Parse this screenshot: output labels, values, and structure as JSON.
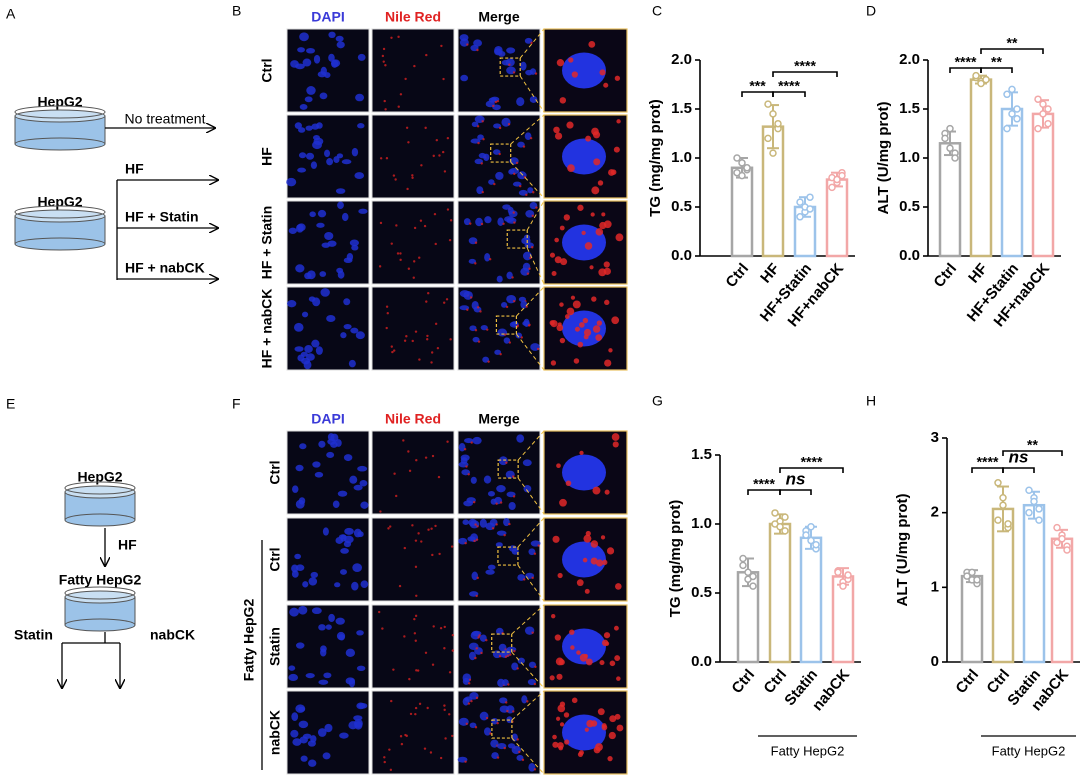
{
  "panel_labels": [
    "A",
    "B",
    "C",
    "D",
    "E",
    "F",
    "G",
    "H"
  ],
  "schematic_a": {
    "cell_1": "HepG2",
    "arrow_1": "No treatment",
    "cell_2": "HepG2",
    "branches": [
      "HF",
      "HF + Statin",
      "HF + nabCK"
    ]
  },
  "microscopy_b": {
    "columns": [
      "DAPI",
      "Nile Red",
      "Merge"
    ],
    "rows": [
      "Ctrl",
      "HF",
      "HF + Statin",
      "HF + nabCK"
    ]
  },
  "schematic_e": {
    "cell_1": "HepG2",
    "arrow": "HF",
    "cell_2": "Fatty HepG2",
    "branches": [
      "Statin",
      "nabCK"
    ]
  },
  "microscopy_f": {
    "columns": [
      "DAPI",
      "Nile Red",
      "Merge"
    ],
    "rows": [
      "Ctrl",
      "Ctrl",
      "Statin",
      "nabCK"
    ],
    "group": "Fatty HepG2"
  },
  "chart_data": [
    {
      "type": "bar",
      "ylabel": "TG (mg/mg prot)",
      "categories": [
        "Ctrl",
        "HF",
        "HF+Statin",
        "HF+nabCK"
      ],
      "colors": [
        "#a6a6a6",
        "#c9b77a",
        "#9cc3ea",
        "#f2a7a7"
      ],
      "values": [
        0.9,
        1.32,
        0.5,
        0.78
      ],
      "errors": [
        0.1,
        0.22,
        0.1,
        0.07
      ],
      "points": [
        [
          0.85,
          0.95,
          0.88,
          1.0,
          0.82,
          0.9
        ],
        [
          1.55,
          1.45,
          1.3,
          1.2,
          1.05,
          1.35
        ],
        [
          0.55,
          0.45,
          0.6,
          0.4,
          0.5,
          0.48
        ],
        [
          0.8,
          0.75,
          0.85,
          0.7,
          0.78,
          0.82
        ]
      ],
      "ylim": [
        0,
        2
      ],
      "yticks": [
        {
          "value": 0,
          "label": "0.0"
        },
        0.5,
        {
          "value": 1,
          "label": "1.0"
        },
        1.5,
        {
          "value": 2,
          "label": "2.0"
        }
      ],
      "significance": [
        {
          "pair": [
            0,
            1
          ],
          "label": "***"
        },
        {
          "pair": [
            1,
            2
          ],
          "label": "****"
        },
        {
          "pair": [
            1,
            3
          ],
          "label": "****"
        }
      ]
    },
    {
      "type": "bar",
      "ylabel": "ALT (U/mg prot)",
      "categories": [
        "Ctrl",
        "HF",
        "HF+Statin",
        "HF+nabCK"
      ],
      "colors": [
        "#a6a6a6",
        "#c9b77a",
        "#9cc3ea",
        "#f2a7a7"
      ],
      "values": [
        1.15,
        1.8,
        1.5,
        1.45
      ],
      "errors": [
        0.12,
        0.04,
        0.17,
        0.14
      ],
      "points": [
        [
          1.25,
          1.1,
          1.05,
          1.2,
          1.3,
          1.0
        ],
        [
          1.82,
          1.78,
          1.8,
          1.84,
          1.76,
          1.8
        ],
        [
          1.65,
          1.7,
          1.5,
          1.3,
          1.45,
          1.4
        ],
        [
          1.6,
          1.55,
          1.35,
          1.3,
          1.45,
          1.5
        ]
      ],
      "ylim": [
        0,
        2
      ],
      "yticks": [
        {
          "value": 0,
          "label": "0.0"
        },
        0.5,
        {
          "value": 1,
          "label": "1.0"
        },
        1.5,
        {
          "value": 2,
          "label": "2.0"
        }
      ],
      "significance": [
        {
          "pair": [
            0,
            1
          ],
          "label": "****"
        },
        {
          "pair": [
            1,
            2
          ],
          "label": "**"
        },
        {
          "pair": [
            1,
            3
          ],
          "label": "**"
        }
      ]
    },
    {
      "type": "bar",
      "ylabel": "TG (mg/mg prot)",
      "categories": [
        "Ctrl",
        "Ctrl",
        "Statin",
        "nabCK"
      ],
      "group": "Fatty HepG2",
      "colors": [
        "#a6a6a6",
        "#c9b77a",
        "#9cc3ea",
        "#f2a7a7"
      ],
      "values": [
        0.65,
        1.0,
        0.9,
        0.62
      ],
      "errors": [
        0.1,
        0.07,
        0.08,
        0.06
      ],
      "points": [
        [
          0.75,
          0.6,
          0.55,
          0.7,
          0.65,
          0.62
        ],
        [
          1.08,
          1.02,
          0.95,
          1.0,
          0.98,
          1.05
        ],
        [
          0.95,
          0.88,
          0.82,
          0.92,
          0.98,
          0.85
        ],
        [
          0.66,
          0.58,
          0.6,
          0.65,
          0.55,
          0.63
        ]
      ],
      "ylim": [
        0,
        1.5
      ],
      "yticks": [
        {
          "value": 0,
          "label": "0.0"
        },
        0.5,
        {
          "value": 1,
          "label": "1.0"
        },
        1.5
      ],
      "significance": [
        {
          "pair": [
            0,
            1
          ],
          "label": "****"
        },
        {
          "pair": [
            1,
            2
          ],
          "label": "ns"
        },
        {
          "pair": [
            1,
            3
          ],
          "label": "****"
        }
      ]
    },
    {
      "type": "bar",
      "ylabel": "ALT (U/mg prot)",
      "categories": [
        "Ctrl",
        "Ctrl",
        "Statin",
        "nabCK"
      ],
      "group": "Fatty HepG2",
      "colors": [
        "#a6a6a6",
        "#c9b77a",
        "#9cc3ea",
        "#f2a7a7"
      ],
      "values": [
        1.15,
        2.05,
        2.1,
        1.65
      ],
      "errors": [
        0.08,
        0.3,
        0.18,
        0.12
      ],
      "points": [
        [
          1.2,
          1.1,
          1.05,
          1.15,
          1.2,
          1.1
        ],
        [
          2.4,
          2.2,
          1.8,
          1.9,
          2.1,
          1.85
        ],
        [
          2.3,
          2.2,
          1.9,
          2.0,
          2.15,
          2.05
        ],
        [
          1.8,
          1.7,
          1.55,
          1.6,
          1.65,
          1.5
        ]
      ],
      "ylim": [
        0,
        3
      ],
      "yticks": [
        0,
        1,
        2,
        3
      ],
      "significance": [
        {
          "pair": [
            0,
            1
          ],
          "label": "****"
        },
        {
          "pair": [
            1,
            2
          ],
          "label": "ns"
        },
        {
          "pair": [
            1,
            3
          ],
          "label": "**"
        }
      ]
    }
  ]
}
